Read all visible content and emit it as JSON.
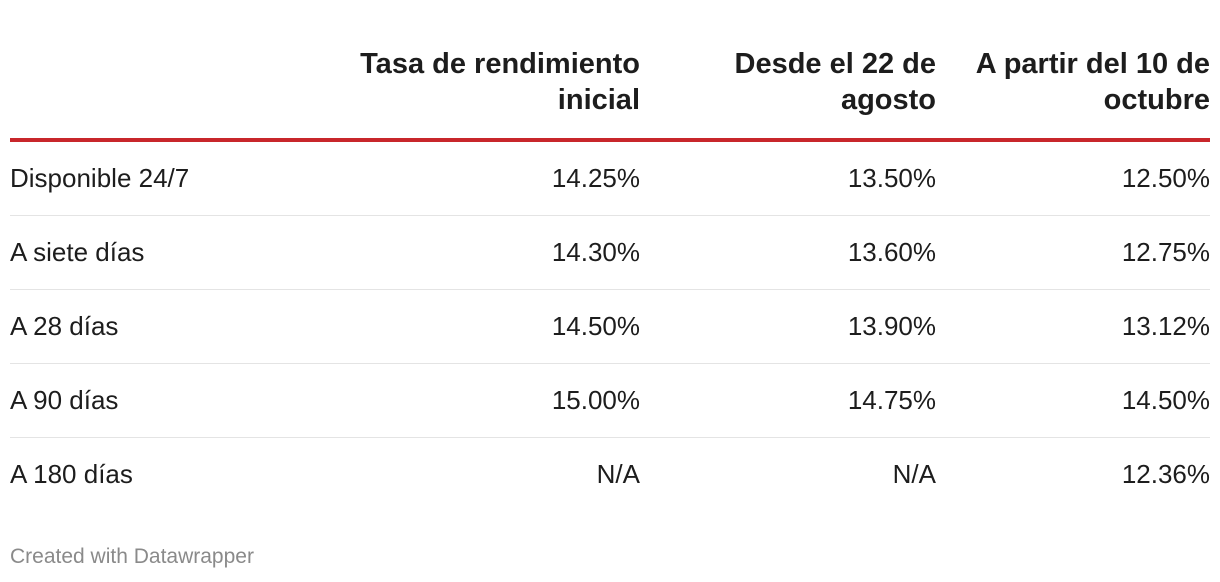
{
  "chart_data": {
    "type": "table",
    "columns": [
      "",
      "Tasa de rendimiento inicial",
      "Desde el 22 de agosto",
      "A partir del 10 de octubre"
    ],
    "rows": [
      {
        "label": "Disponible 24/7",
        "values": [
          "14.25%",
          "13.50%",
          "12.50%"
        ]
      },
      {
        "label": "A siete días",
        "values": [
          "14.30%",
          "13.60%",
          "12.75%"
        ]
      },
      {
        "label": "A 28 días",
        "values": [
          "14.50%",
          "13.90%",
          "13.12%"
        ]
      },
      {
        "label": "A 90 días",
        "values": [
          "15.00%",
          "14.75%",
          "14.50%"
        ]
      },
      {
        "label": "A 180 días",
        "values": [
          "N/A",
          "N/A",
          "12.36%"
        ]
      }
    ]
  },
  "colors": {
    "header_rule": "#c8262b",
    "row_divider": "#e4e4e4",
    "footer_text": "#8a8a8a"
  },
  "footer": {
    "credit": "Created with Datawrapper"
  }
}
